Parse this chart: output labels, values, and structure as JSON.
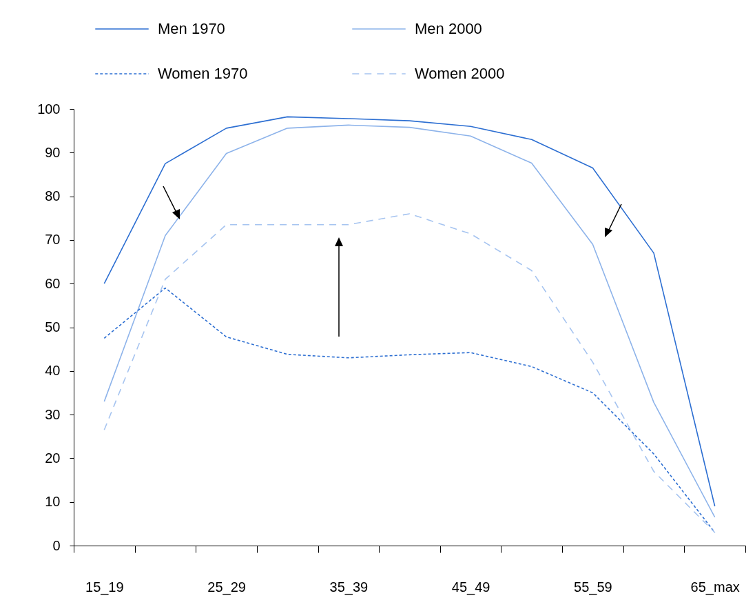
{
  "chart_data": {
    "type": "line",
    "categories": [
      "15_19",
      null,
      "25_29",
      null,
      "35_39",
      null,
      "45_49",
      null,
      "55_59",
      null,
      "65_max"
    ],
    "ylim": [
      0,
      100
    ],
    "yticks": [
      0,
      10,
      20,
      30,
      40,
      50,
      60,
      70,
      80,
      90,
      100
    ],
    "grid": false,
    "legend": "top left",
    "marker": "none",
    "series": [
      {
        "name": "Men 1970",
        "color": "#2d6fd2",
        "line_style": "solid",
        "values": [
          60,
          87.5,
          95.6,
          98.2,
          97.8,
          97.3,
          96,
          93,
          86.5,
          67,
          9
        ]
      },
      {
        "name": "Men 2000",
        "color": "#8db3ea",
        "line_style": "solid",
        "values": [
          33,
          71,
          89.8,
          95.6,
          96.3,
          95.8,
          93.8,
          87.6,
          69,
          32.8,
          6.5
        ]
      },
      {
        "name": "Women 1970",
        "color": "#2d6fd2",
        "line_style": "dotted",
        "values": [
          47.5,
          59,
          47.8,
          43.8,
          43,
          43.7,
          44.2,
          41,
          35,
          21,
          3
        ]
      },
      {
        "name": "Women 2000",
        "color": "#a6c4f0",
        "line_style": "dashed",
        "values": [
          26.5,
          61,
          73.5,
          73.5,
          73.5,
          76,
          71.4,
          63,
          42,
          17,
          3
        ]
      }
    ]
  }
}
